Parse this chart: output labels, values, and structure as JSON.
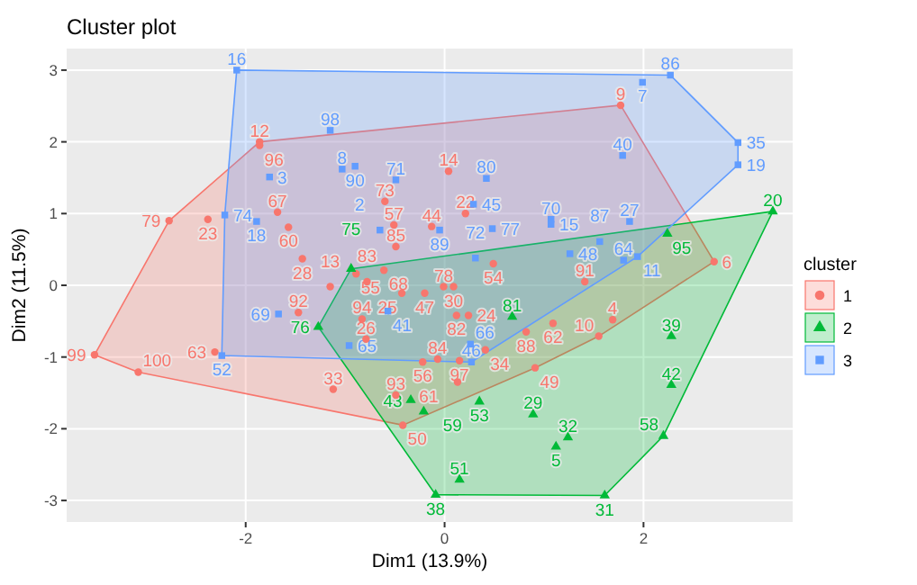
{
  "chart_data": {
    "type": "scatter",
    "title": "Cluster plot",
    "xlabel": "Dim1 (13.9%)",
    "ylabel": "Dim2 (11.5%)",
    "legend_title": "cluster",
    "legend": "right",
    "grid": true,
    "xlim": [
      -3.8,
      3.5
    ],
    "ylim": [
      -3.3,
      3.3
    ],
    "xticks": [
      -2,
      0,
      2
    ],
    "yticks": [
      -3,
      -2,
      -1,
      0,
      1,
      2,
      3
    ],
    "series": [
      {
        "name": "1",
        "color": "#f8766d",
        "marker": "circle",
        "x": [
          -1.86,
          -1.86,
          -2.77,
          -2.38,
          -1.68,
          -1.57,
          0.04,
          -0.6,
          0.21,
          -0.51,
          -0.49,
          -0.13,
          -1.43,
          -1.15,
          0.49,
          -0.89,
          -0.61,
          -0.78,
          -0.01,
          0.09,
          -0.2,
          -0.43,
          -1.47,
          1.77,
          2.71,
          1.41,
          -3.52,
          -3.08,
          -2.31,
          -0.83,
          -0.79,
          -1.12,
          0.12,
          0.24,
          0.41,
          -0.07,
          0.15,
          -0.22,
          0.13,
          -0.49,
          -0.42,
          0.82,
          1.09,
          1.69,
          1.55,
          0.91
        ],
        "values": [
          2.0,
          1.95,
          0.9,
          0.92,
          1.02,
          0.81,
          1.59,
          1.17,
          1.0,
          0.84,
          0.54,
          0.82,
          0.37,
          -0.02,
          0.3,
          0.16,
          0.21,
          0.05,
          -0.02,
          -0.02,
          -0.11,
          -0.11,
          -0.38,
          2.51,
          0.33,
          0.05,
          -0.97,
          -1.21,
          -0.93,
          -0.47,
          -0.75,
          -1.45,
          -0.42,
          -0.42,
          -0.9,
          -1.03,
          -1.05,
          -1.07,
          -1.35,
          -1.53,
          -1.95,
          -0.65,
          -0.53,
          -0.48,
          -0.71,
          -1.15
        ]
      },
      {
        "name": "2",
        "color": "#00ba38",
        "marker": "triangle",
        "x": [
          -0.94,
          2.24,
          3.3,
          -1.27,
          0.68,
          0.35,
          -0.34,
          -0.21,
          0.15,
          -0.09,
          1.61,
          2.28,
          2.28,
          0.89,
          1.24,
          1.12,
          2.2
        ],
        "values": [
          0.23,
          0.72,
          1.03,
          -0.58,
          -0.44,
          -1.62,
          -1.6,
          -1.76,
          -2.71,
          -2.92,
          -2.93,
          -0.71,
          -1.39,
          -1.8,
          -2.12,
          -2.25,
          -2.1
        ]
      },
      {
        "name": "3",
        "color": "#619cff",
        "marker": "square",
        "x": [
          -2.09,
          -1.76,
          -2.21,
          -1.89,
          -1.15,
          -1.03,
          -0.9,
          -0.49,
          0.42,
          0.29,
          0.48,
          -0.65,
          -0.05,
          0.31,
          -1.67,
          1.99,
          2.27,
          2.95,
          2.95,
          1.79,
          1.07,
          1.07,
          1.86,
          1.56,
          1.26,
          1.8,
          1.94,
          -0.96,
          -0.57,
          0.26,
          0.27,
          -2.24
        ],
        "values": [
          3.0,
          1.51,
          0.98,
          0.89,
          2.16,
          1.62,
          1.66,
          1.47,
          1.49,
          1.13,
          0.79,
          0.77,
          0.77,
          0.38,
          -0.4,
          2.83,
          2.93,
          1.99,
          1.68,
          1.81,
          0.92,
          0.85,
          0.89,
          0.61,
          0.44,
          0.35,
          0.4,
          -0.84,
          -0.36,
          -0.82,
          -1.07,
          -0.98
        ]
      }
    ],
    "annotations": [
      {
        "text": "12",
        "x": -1.86,
        "y": 2.0
      },
      {
        "text": "96",
        "x": -1.86,
        "y": 1.95
      },
      {
        "text": "79",
        "x": -2.77,
        "y": 0.9
      },
      {
        "text": "23",
        "x": -2.38,
        "y": 0.92
      },
      {
        "text": "67",
        "x": -1.68,
        "y": 1.02
      },
      {
        "text": "60",
        "x": -1.57,
        "y": 0.81
      },
      {
        "text": "14",
        "x": 0.04,
        "y": 1.59
      },
      {
        "text": "73",
        "x": -0.6,
        "y": 1.17
      },
      {
        "text": "22",
        "x": 0.21,
        "y": 1.0
      },
      {
        "text": "57",
        "x": -0.51,
        "y": 0.84
      },
      {
        "text": "85",
        "x": -0.49,
        "y": 0.54
      },
      {
        "text": "44",
        "x": -0.13,
        "y": 0.82
      },
      {
        "text": "28",
        "x": -1.43,
        "y": 0.37
      },
      {
        "text": "13",
        "x": -1.15,
        "y": -0.02
      },
      {
        "text": "54",
        "x": 0.49,
        "y": 0.3
      },
      {
        "text": "55",
        "x": -0.89,
        "y": 0.16
      },
      {
        "text": "68",
        "x": -0.61,
        "y": 0.21
      },
      {
        "text": "83",
        "x": -0.78,
        "y": 0.05
      },
      {
        "text": "78",
        "x": -0.01,
        "y": -0.02
      },
      {
        "text": "30",
        "x": 0.09,
        "y": -0.02
      },
      {
        "text": "47",
        "x": -0.2,
        "y": -0.11
      },
      {
        "text": "25",
        "x": -0.43,
        "y": -0.11
      },
      {
        "text": "92",
        "x": -1.47,
        "y": -0.38
      },
      {
        "text": "9",
        "x": 1.77,
        "y": 2.51
      },
      {
        "text": "6",
        "x": 2.71,
        "y": 0.33
      },
      {
        "text": "91",
        "x": 1.41,
        "y": 0.05
      },
      {
        "text": "99",
        "x": -3.52,
        "y": -0.97
      },
      {
        "text": "100",
        "x": -3.08,
        "y": -1.21
      },
      {
        "text": "63",
        "x": -2.31,
        "y": -0.93
      },
      {
        "text": "94",
        "x": -0.83,
        "y": -0.47
      },
      {
        "text": "26",
        "x": -0.79,
        "y": -0.75
      },
      {
        "text": "33",
        "x": -1.12,
        "y": -1.45
      },
      {
        "text": "82",
        "x": 0.12,
        "y": -0.42
      },
      {
        "text": "24",
        "x": 0.24,
        "y": -0.42
      },
      {
        "text": "34",
        "x": 0.41,
        "y": -0.9
      },
      {
        "text": "84",
        "x": -0.07,
        "y": -1.03
      },
      {
        "text": "97",
        "x": 0.15,
        "y": -1.05
      },
      {
        "text": "56",
        "x": -0.22,
        "y": -1.07
      },
      {
        "text": "61",
        "x": 0.13,
        "y": -1.35
      },
      {
        "text": "93",
        "x": -0.49,
        "y": -1.53
      },
      {
        "text": "50",
        "x": -0.42,
        "y": -1.95
      },
      {
        "text": "88",
        "x": 0.82,
        "y": -0.65
      },
      {
        "text": "62",
        "x": 1.09,
        "y": -0.53
      },
      {
        "text": "4",
        "x": 1.69,
        "y": -0.48
      },
      {
        "text": "10",
        "x": 1.55,
        "y": -0.71
      },
      {
        "text": "49",
        "x": 0.91,
        "y": -1.15
      },
      {
        "text": "75",
        "x": -0.94,
        "y": 0.23
      },
      {
        "text": "95",
        "x": 2.24,
        "y": 0.72
      },
      {
        "text": "20",
        "x": 3.3,
        "y": 1.03
      },
      {
        "text": "76",
        "x": -1.27,
        "y": -0.58
      },
      {
        "text": "81",
        "x": 0.68,
        "y": -0.44
      },
      {
        "text": "53",
        "x": 0.35,
        "y": -1.62
      },
      {
        "text": "43",
        "x": -0.34,
        "y": -1.6
      },
      {
        "text": "59",
        "x": -0.21,
        "y": -1.76
      },
      {
        "text": "51",
        "x": 0.15,
        "y": -2.71
      },
      {
        "text": "38",
        "x": -0.09,
        "y": -2.92
      },
      {
        "text": "31",
        "x": 1.61,
        "y": -2.93
      },
      {
        "text": "39",
        "x": 2.28,
        "y": -0.71
      },
      {
        "text": "42",
        "x": 2.28,
        "y": -1.39
      },
      {
        "text": "29",
        "x": 0.89,
        "y": -1.8
      },
      {
        "text": "32",
        "x": 1.24,
        "y": -2.12
      },
      {
        "text": "5",
        "x": 1.12,
        "y": -2.25
      },
      {
        "text": "58",
        "x": 2.2,
        "y": -2.1
      },
      {
        "text": "16",
        "x": -2.09,
        "y": 3.0
      },
      {
        "text": "3",
        "x": -1.76,
        "y": 1.51
      },
      {
        "text": "74",
        "x": -2.21,
        "y": 0.98
      },
      {
        "text": "18",
        "x": -1.89,
        "y": 0.89
      },
      {
        "text": "98",
        "x": -1.15,
        "y": 2.16
      },
      {
        "text": "8",
        "x": -1.03,
        "y": 1.62
      },
      {
        "text": "90",
        "x": -0.9,
        "y": 1.66
      },
      {
        "text": "71",
        "x": -0.49,
        "y": 1.47
      },
      {
        "text": "80",
        "x": 0.42,
        "y": 1.49
      },
      {
        "text": "45",
        "x": 0.29,
        "y": 1.13
      },
      {
        "text": "77",
        "x": 0.48,
        "y": 0.79
      },
      {
        "text": "2",
        "x": -0.65,
        "y": 0.77
      },
      {
        "text": "89",
        "x": -0.05,
        "y": 0.77
      },
      {
        "text": "72",
        "x": 0.31,
        "y": 0.38
      },
      {
        "text": "69",
        "x": -1.67,
        "y": -0.4
      },
      {
        "text": "7",
        "x": 1.99,
        "y": 2.83
      },
      {
        "text": "86",
        "x": 2.27,
        "y": 2.93
      },
      {
        "text": "35",
        "x": 2.95,
        "y": 1.99
      },
      {
        "text": "19",
        "x": 2.95,
        "y": 1.68
      },
      {
        "text": "40",
        "x": 1.79,
        "y": 1.81
      },
      {
        "text": "70",
        "x": 1.07,
        "y": 0.92
      },
      {
        "text": "15",
        "x": 1.07,
        "y": 0.85
      },
      {
        "text": "27",
        "x": 1.86,
        "y": 0.89
      },
      {
        "text": "87",
        "x": 1.56,
        "y": 0.61
      },
      {
        "text": "48",
        "x": 1.26,
        "y": 0.44
      },
      {
        "text": "64",
        "x": 1.8,
        "y": 0.35
      },
      {
        "text": "11",
        "x": 1.94,
        "y": 0.4
      },
      {
        "text": "65",
        "x": -0.96,
        "y": -0.84
      },
      {
        "text": "41",
        "x": -0.57,
        "y": -0.36
      },
      {
        "text": "66",
        "x": 0.26,
        "y": -0.82
      },
      {
        "text": "46",
        "x": 0.27,
        "y": -1.07
      },
      {
        "text": "52",
        "x": -2.24,
        "y": -0.98
      }
    ]
  }
}
